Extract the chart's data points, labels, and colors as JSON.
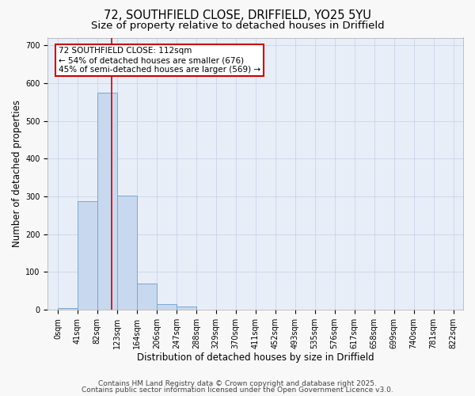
{
  "title1": "72, SOUTHFIELD CLOSE, DRIFFIELD, YO25 5YU",
  "title2": "Size of property relative to detached houses in Driffield",
  "xlabel": "Distribution of detached houses by size in Driffield",
  "ylabel": "Number of detached properties",
  "bin_labels": [
    "0sqm",
    "41sqm",
    "82sqm",
    "123sqm",
    "164sqm",
    "206sqm",
    "247sqm",
    "288sqm",
    "329sqm",
    "370sqm",
    "411sqm",
    "452sqm",
    "493sqm",
    "535sqm",
    "576sqm",
    "617sqm",
    "658sqm",
    "699sqm",
    "740sqm",
    "781sqm",
    "822sqm"
  ],
  "bar_values": [
    5,
    288,
    575,
    303,
    70,
    15,
    8,
    0,
    0,
    0,
    0,
    0,
    0,
    0,
    0,
    0,
    0,
    0,
    0,
    0
  ],
  "bar_color": "#c8d8ee",
  "bar_edge_color": "#7aa8d0",
  "red_line_x": 112,
  "bin_width": 41,
  "ylim": [
    0,
    720
  ],
  "yticks": [
    0,
    100,
    200,
    300,
    400,
    500,
    600,
    700
  ],
  "annotation_line1": "72 SOUTHFIELD CLOSE: 112sqm",
  "annotation_line2": "← 54% of detached houses are smaller (676)",
  "annotation_line3": "45% of semi-detached houses are larger (569) →",
  "annotation_box_color": "#ffffff",
  "annotation_box_edge_color": "#cc0000",
  "footer1": "Contains HM Land Registry data © Crown copyright and database right 2025.",
  "footer2": "Contains public sector information licensed under the Open Government Licence v3.0.",
  "fig_bg_color": "#f8f8f8",
  "plot_bg_color": "#e8eef8",
  "grid_color": "#c8d4e8",
  "title_fontsize": 10.5,
  "subtitle_fontsize": 9.5,
  "axis_label_fontsize": 8.5,
  "tick_fontsize": 7,
  "annotation_fontsize": 7.5,
  "footer_fontsize": 6.5
}
